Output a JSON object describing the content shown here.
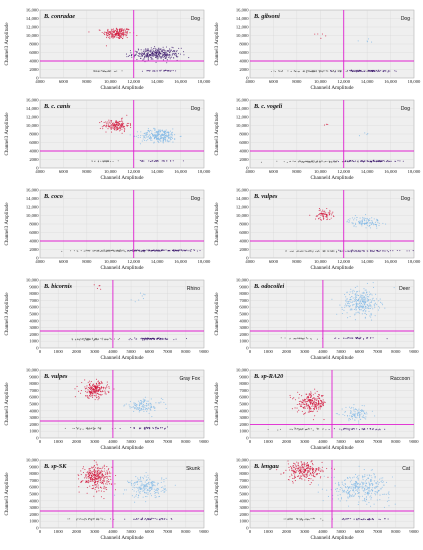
{
  "colors": {
    "red": "#d2143a",
    "light_blue": "#7fb8e6",
    "purple": "#3d1a6e",
    "gray": "#6e6e6e",
    "magenta": "#e020d0",
    "grid": "#d4d4d4",
    "bg": "#efefef"
  },
  "chart_data": [
    {
      "type": "scatter",
      "species": "B. conradae",
      "host": "Dog",
      "xlabel": "Channel4 Amplitude",
      "ylabel": "Channel3 Amplitude",
      "xlim": [
        4000,
        18000
      ],
      "ylim": [
        0,
        16000
      ],
      "xticks": [
        "4000",
        "6000",
        "8000",
        "10,000",
        "12,000",
        "14,000",
        "16,000",
        "18,000"
      ],
      "yticks": [
        "0",
        "2000",
        "4000",
        "6000",
        "8000",
        "10,000",
        "12,000",
        "14,000",
        "16,000"
      ],
      "threshold_x": 12000,
      "threshold_y": 4000,
      "clusters": [
        {
          "color": "red",
          "cx": 10600,
          "cy": 10500,
          "sx": 600,
          "sy": 700,
          "n": 200
        },
        {
          "color": "purple",
          "cx": 13900,
          "cy": 5600,
          "sx": 1000,
          "sy": 700,
          "n": 320
        },
        {
          "color": "gray",
          "cx": 9500,
          "cy": 1600,
          "sx": 500,
          "sy": 60,
          "n": 35
        },
        {
          "color": "purple",
          "cx": 14200,
          "cy": 1700,
          "sx": 700,
          "sy": 60,
          "n": 30
        }
      ]
    },
    {
      "type": "scatter",
      "species": "B. gibsoni",
      "host": "Dog",
      "xlabel": "Channel4 Amplitude",
      "ylabel": "Channel3 Amplitude",
      "xlim": [
        4000,
        18000
      ],
      "ylim": [
        0,
        16000
      ],
      "xticks": [
        "4000",
        "6000",
        "8000",
        "10,000",
        "12,000",
        "14,000",
        "16,000",
        "18,000"
      ],
      "yticks": [
        "0",
        "2000",
        "4000",
        "6000",
        "8000",
        "10,000",
        "12,000",
        "14,000",
        "16,000"
      ],
      "threshold_x": 12000,
      "threshold_y": 4000,
      "clusters": [
        {
          "color": "red",
          "cx": 10000,
          "cy": 10300,
          "sx": 300,
          "sy": 500,
          "n": 5
        },
        {
          "color": "light_blue",
          "cx": 13800,
          "cy": 8600,
          "sx": 400,
          "sy": 400,
          "n": 5
        },
        {
          "color": "gray",
          "cx": 9600,
          "cy": 1600,
          "sx": 1500,
          "sy": 80,
          "n": 90
        },
        {
          "color": "purple",
          "cx": 14000,
          "cy": 1650,
          "sx": 1300,
          "sy": 80,
          "n": 90
        }
      ]
    },
    {
      "type": "scatter",
      "species": "B. c. canis",
      "host": "Dog",
      "xlabel": "Channel4 Amplitude",
      "ylabel": "Channel3 Amplitude",
      "xlim": [
        4000,
        18000
      ],
      "ylim": [
        0,
        16000
      ],
      "xticks": [
        "4000",
        "6000",
        "8000",
        "10,000",
        "12,000",
        "14,000",
        "16,000",
        "18,000"
      ],
      "yticks": [
        "0",
        "2000",
        "4000",
        "6000",
        "8000",
        "10,000",
        "12,000",
        "14,000",
        "16,000"
      ],
      "threshold_x": 12000,
      "threshold_y": 4000,
      "clusters": [
        {
          "color": "red",
          "cx": 10500,
          "cy": 10000,
          "sx": 550,
          "sy": 700,
          "n": 160
        },
        {
          "color": "light_blue",
          "cx": 14200,
          "cy": 7600,
          "sx": 800,
          "sy": 800,
          "n": 260
        },
        {
          "color": "gray",
          "cx": 9500,
          "cy": 1600,
          "sx": 600,
          "sy": 60,
          "n": 30
        },
        {
          "color": "purple",
          "cx": 14000,
          "cy": 1650,
          "sx": 700,
          "sy": 60,
          "n": 30
        }
      ]
    },
    {
      "type": "scatter",
      "species": "B. c. vogeli",
      "host": "Dog",
      "xlabel": "Channel4 Amplitude",
      "ylabel": "Channel3 Amplitude",
      "xlim": [
        4000,
        18000
      ],
      "ylim": [
        0,
        16000
      ],
      "xticks": [
        "4000",
        "6000",
        "8000",
        "10,000",
        "12,000",
        "14,000",
        "16,000",
        "18,000"
      ],
      "yticks": [
        "0",
        "2000",
        "4000",
        "6000",
        "8000",
        "10,000",
        "12,000",
        "14,000",
        "16,000"
      ],
      "threshold_x": 12000,
      "threshold_y": 4000,
      "clusters": [
        {
          "color": "red",
          "cx": 10400,
          "cy": 10300,
          "sx": 200,
          "sy": 300,
          "n": 3
        },
        {
          "color": "light_blue",
          "cx": 13700,
          "cy": 8100,
          "sx": 300,
          "sy": 300,
          "n": 4
        },
        {
          "color": "gray",
          "cx": 9800,
          "cy": 1500,
          "sx": 1500,
          "sy": 80,
          "n": 90
        },
        {
          "color": "purple",
          "cx": 14300,
          "cy": 1600,
          "sx": 1400,
          "sy": 80,
          "n": 90
        }
      ]
    },
    {
      "type": "scatter",
      "species": "B. coco",
      "host": "Dog",
      "xlabel": "Channel4 Amplitude",
      "ylabel": "Channel3 Amplitude",
      "xlim": [
        4000,
        18000
      ],
      "ylim": [
        0,
        16000
      ],
      "xticks": [
        "4000",
        "6000",
        "8000",
        "10,000",
        "12,000",
        "14,000",
        "16,000",
        "18,000"
      ],
      "yticks": [
        "0",
        "2000",
        "4000",
        "6000",
        "8000",
        "10,000",
        "12,000",
        "14,000",
        "16,000"
      ],
      "threshold_x": 12000,
      "threshold_y": 4000,
      "clusters": [
        {
          "color": "gray",
          "cx": 10000,
          "cy": 1700,
          "sx": 1400,
          "sy": 90,
          "n": 100
        },
        {
          "color": "purple",
          "cx": 14500,
          "cy": 1750,
          "sx": 1600,
          "sy": 90,
          "n": 110
        }
      ]
    },
    {
      "type": "scatter",
      "species": "B. vulpes",
      "host": "Dog",
      "xlabel": "Channel4 Amplitude",
      "ylabel": "Channel3 Amplitude",
      "xlim": [
        4000,
        18000
      ],
      "ylim": [
        0,
        16000
      ],
      "xticks": [
        "4000",
        "6000",
        "8000",
        "10,000",
        "12,000",
        "14,000",
        "16,000",
        "18,000"
      ],
      "yticks": [
        "0",
        "2000",
        "4000",
        "6000",
        "8000",
        "10,000",
        "12,000",
        "14,000",
        "16,000"
      ],
      "threshold_x": 12000,
      "threshold_y": 4000,
      "clusters": [
        {
          "color": "red",
          "cx": 10300,
          "cy": 10200,
          "sx": 400,
          "sy": 600,
          "n": 70
        },
        {
          "color": "light_blue",
          "cx": 13800,
          "cy": 8500,
          "sx": 700,
          "sy": 600,
          "n": 110
        },
        {
          "color": "gray",
          "cx": 9700,
          "cy": 1600,
          "sx": 1300,
          "sy": 80,
          "n": 60
        },
        {
          "color": "purple",
          "cx": 14200,
          "cy": 1650,
          "sx": 1300,
          "sy": 80,
          "n": 60
        }
      ]
    },
    {
      "type": "scatter",
      "species": "B. bicornis",
      "host": "Rhino",
      "xlabel": "Channel4 Amplitude",
      "ylabel": "Channel3 Amplitude",
      "xlim": [
        0,
        9000
      ],
      "ylim": [
        0,
        10000
      ],
      "xticks": [
        "0",
        "1000",
        "2000",
        "3000",
        "4000",
        "5000",
        "6000",
        "7000",
        "8000",
        "9000"
      ],
      "yticks": [
        "0",
        "1000",
        "2000",
        "3000",
        "4000",
        "5000",
        "6000",
        "7000",
        "8000",
        "9000",
        "10,000"
      ],
      "threshold_x": 4000,
      "threshold_y": 2500,
      "clusters": [
        {
          "color": "red",
          "cx": 3000,
          "cy": 9000,
          "sx": 200,
          "sy": 300,
          "n": 5
        },
        {
          "color": "light_blue",
          "cx": 5700,
          "cy": 7400,
          "sx": 300,
          "sy": 400,
          "n": 8
        },
        {
          "color": "gray",
          "cx": 2900,
          "cy": 1300,
          "sx": 600,
          "sy": 70,
          "n": 70
        },
        {
          "color": "purple",
          "cx": 6100,
          "cy": 1350,
          "sx": 700,
          "sy": 70,
          "n": 80
        }
      ]
    },
    {
      "type": "scatter",
      "species": "B. odocoilei",
      "host": "Deer",
      "xlabel": "Channel4 Amplitude",
      "ylabel": "Channel3 Amplitude",
      "xlim": [
        0,
        9000
      ],
      "ylim": [
        0,
        10000
      ],
      "xticks": [
        "0",
        "1000",
        "2000",
        "3000",
        "4000",
        "5000",
        "6000",
        "7000",
        "8000",
        "9000"
      ],
      "yticks": [
        "0",
        "1000",
        "2000",
        "3000",
        "4000",
        "5000",
        "6000",
        "7000",
        "8000",
        "9000",
        "10,000"
      ],
      "threshold_x": 4000,
      "threshold_y": 2500,
      "clusters": [
        {
          "color": "light_blue",
          "cx": 6100,
          "cy": 6700,
          "sx": 500,
          "sy": 1000,
          "n": 280
        },
        {
          "color": "gray",
          "cx": 2800,
          "cy": 1400,
          "sx": 500,
          "sy": 60,
          "n": 30
        },
        {
          "color": "purple",
          "cx": 6000,
          "cy": 1450,
          "sx": 600,
          "sy": 60,
          "n": 35
        }
      ]
    },
    {
      "type": "scatter",
      "species": "B. vulpes",
      "host": "Gray Fox",
      "xlabel": "Channel4 Amplitude",
      "ylabel": "Channel3 Amplitude",
      "xlim": [
        0,
        9000
      ],
      "ylim": [
        0,
        10000
      ],
      "xticks": [
        "0",
        "1000",
        "2000",
        "3000",
        "4000",
        "5000",
        "6000",
        "7000",
        "8000",
        "9000"
      ],
      "yticks": [
        "0",
        "1000",
        "2000",
        "3000",
        "4000",
        "5000",
        "6000",
        "7000",
        "8000",
        "9000",
        "10,000"
      ],
      "threshold_x": 4000,
      "threshold_y": 2500,
      "clusters": [
        {
          "color": "red",
          "cx": 3000,
          "cy": 7100,
          "sx": 350,
          "sy": 600,
          "n": 220
        },
        {
          "color": "light_blue",
          "cx": 5700,
          "cy": 4700,
          "sx": 500,
          "sy": 500,
          "n": 120
        },
        {
          "color": "gray",
          "cx": 2700,
          "cy": 1400,
          "sx": 600,
          "sy": 60,
          "n": 40
        },
        {
          "color": "purple",
          "cx": 5900,
          "cy": 1450,
          "sx": 600,
          "sy": 60,
          "n": 40
        }
      ]
    },
    {
      "type": "scatter",
      "species": "B. sp-RA20",
      "host": "Raccoon",
      "xlabel": "Channel4 Amplitude",
      "ylabel": "Channel3 Amplitude",
      "xlim": [
        0,
        9000
      ],
      "ylim": [
        0,
        10000
      ],
      "xticks": [
        "0",
        "1000",
        "2000",
        "3000",
        "4000",
        "5000",
        "6000",
        "7000",
        "8000",
        "9000"
      ],
      "yticks": [
        "0",
        "1000",
        "2000",
        "3000",
        "4000",
        "5000",
        "6000",
        "7000",
        "8000",
        "9000",
        "10,000"
      ],
      "threshold_x": 4500,
      "threshold_y": 2000,
      "clusters": [
        {
          "color": "red",
          "cx": 3400,
          "cy": 5100,
          "sx": 400,
          "sy": 700,
          "n": 240
        },
        {
          "color": "light_blue",
          "cx": 5800,
          "cy": 3500,
          "sx": 400,
          "sy": 500,
          "n": 100
        },
        {
          "color": "gray",
          "cx": 3000,
          "cy": 1300,
          "sx": 600,
          "sy": 60,
          "n": 40
        },
        {
          "color": "purple",
          "cx": 6000,
          "cy": 1300,
          "sx": 600,
          "sy": 60,
          "n": 40
        }
      ]
    },
    {
      "type": "scatter",
      "species": "B. sp-SK",
      "host": "Skunk",
      "xlabel": "Channel4 Amplitude",
      "ylabel": "Channel3 Amplitude",
      "xlim": [
        0,
        9000
      ],
      "ylim": [
        0,
        10000
      ],
      "xticks": [
        "0",
        "1000",
        "2000",
        "3000",
        "4000",
        "5000",
        "6000",
        "7000",
        "8000",
        "9000"
      ],
      "yticks": [
        "0",
        "1000",
        "2000",
        "3000",
        "4000",
        "5000",
        "6000",
        "7000",
        "8000",
        "9000",
        "10,000"
      ],
      "threshold_x": 4000,
      "threshold_y": 2500,
      "clusters": [
        {
          "color": "red",
          "cx": 3100,
          "cy": 7500,
          "sx": 400,
          "sy": 900,
          "n": 300
        },
        {
          "color": "light_blue",
          "cx": 5900,
          "cy": 6000,
          "sx": 500,
          "sy": 800,
          "n": 200
        },
        {
          "color": "gray",
          "cx": 2800,
          "cy": 1300,
          "sx": 600,
          "sy": 60,
          "n": 40
        },
        {
          "color": "purple",
          "cx": 6000,
          "cy": 1300,
          "sx": 600,
          "sy": 60,
          "n": 40
        }
      ]
    },
    {
      "type": "scatter",
      "species": "B. lengau",
      "host": "Cat",
      "xlabel": "Channel4 Amplitude",
      "ylabel": "Channel3 Amplitude",
      "xlim": [
        0,
        9000
      ],
      "ylim": [
        0,
        10000
      ],
      "xticks": [
        "0",
        "1000",
        "2000",
        "3000",
        "4000",
        "5000",
        "6000",
        "7000",
        "8000",
        "9000"
      ],
      "yticks": [
        "0",
        "1000",
        "2000",
        "3000",
        "4000",
        "5000",
        "6000",
        "7000",
        "8000",
        "9000",
        "10,000"
      ],
      "threshold_x": 4500,
      "threshold_y": 2500,
      "clusters": [
        {
          "color": "red",
          "cx": 3000,
          "cy": 8400,
          "sx": 500,
          "sy": 700,
          "n": 250
        },
        {
          "color": "light_blue",
          "cx": 6100,
          "cy": 6000,
          "sx": 800,
          "sy": 1000,
          "n": 330
        },
        {
          "color": "gray",
          "cx": 2800,
          "cy": 1300,
          "sx": 600,
          "sy": 60,
          "n": 40
        },
        {
          "color": "purple",
          "cx": 6100,
          "cy": 1300,
          "sx": 600,
          "sy": 60,
          "n": 40
        }
      ]
    }
  ]
}
